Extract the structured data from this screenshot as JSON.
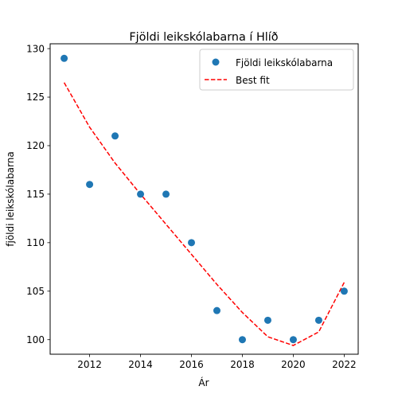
{
  "chart_data": {
    "type": "scatter",
    "title": "Fjöldi leikskólabarna í Hlíð",
    "xlabel": "Ár",
    "ylabel": "fjöldi leikskólabarna",
    "xlim": [
      2010.45,
      2022.55
    ],
    "ylim": [
      98.5,
      130.5
    ],
    "x_ticks": [
      2012,
      2014,
      2016,
      2018,
      2020,
      2022
    ],
    "y_ticks": [
      100,
      105,
      110,
      115,
      120,
      125,
      130
    ],
    "grid": false,
    "legend_position": "top-right",
    "series": [
      {
        "name": "Fjöldi leikskólabarna",
        "kind": "scatter",
        "color": "#1f77b4",
        "x": [
          2011,
          2012,
          2013,
          2014,
          2015,
          2016,
          2017,
          2018,
          2019,
          2020,
          2021,
          2022
        ],
        "y": [
          129,
          116,
          121,
          115,
          115,
          110,
          103,
          100,
          102,
          100,
          102,
          105
        ]
      },
      {
        "name": "Best fit",
        "kind": "line",
        "style": "dashed",
        "color": "#ff0000",
        "x": [
          2011,
          2012,
          2013,
          2014,
          2015,
          2016,
          2017,
          2018,
          2019,
          2020,
          2021,
          2022
        ],
        "y": [
          126.5,
          121.9,
          118.2,
          115.0,
          111.9,
          108.8,
          105.7,
          102.8,
          100.3,
          99.4,
          100.8,
          105.9
        ]
      }
    ]
  }
}
